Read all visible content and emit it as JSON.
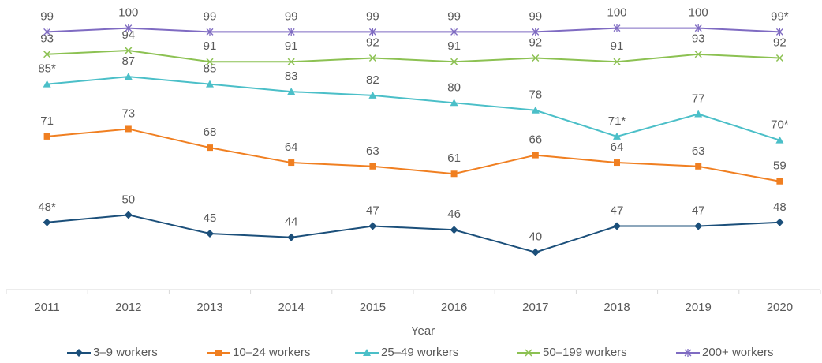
{
  "chart_data": {
    "type": "line",
    "x_label": "Year",
    "categories": [
      "2011",
      "2012",
      "2013",
      "2014",
      "2015",
      "2016",
      "2017",
      "2018",
      "2019",
      "2020"
    ],
    "ylim": [
      30,
      107
    ],
    "series": [
      {
        "name": "3–9 workers",
        "color": "#1b4f7a",
        "marker": "diamond",
        "values": [
          48,
          50,
          45,
          44,
          47,
          46,
          40,
          47,
          47,
          48
        ],
        "value_labels": [
          "48*",
          "50",
          "45",
          "44",
          "47",
          "46",
          "40",
          "47",
          "47",
          "48"
        ]
      },
      {
        "name": "10–24 workers",
        "color": "#f07f21",
        "marker": "square",
        "values": [
          71,
          73,
          68,
          64,
          63,
          61,
          66,
          64,
          63,
          59
        ],
        "value_labels": [
          "71",
          "73",
          "68",
          "64",
          "63",
          "61",
          "66",
          "64",
          "63",
          "59"
        ]
      },
      {
        "name": "25–49 workers",
        "color": "#4bbfc8",
        "marker": "triangle",
        "values": [
          85,
          87,
          85,
          83,
          82,
          80,
          78,
          71,
          77,
          70
        ],
        "value_labels": [
          "85*",
          "87",
          "85",
          "83",
          "82",
          "80",
          "78",
          "71*",
          "77",
          "70*"
        ]
      },
      {
        "name": "50–199 workers",
        "color": "#8cc152",
        "marker": "x",
        "values": [
          93,
          94,
          91,
          91,
          92,
          91,
          92,
          91,
          93,
          92
        ],
        "value_labels": [
          "93",
          "94",
          "91",
          "91",
          "92",
          "91",
          "92",
          "91",
          "93",
          "92"
        ]
      },
      {
        "name": "200+ workers",
        "color": "#7f6bc2",
        "marker": "star",
        "values": [
          99,
          100,
          99,
          99,
          99,
          99,
          99,
          100,
          100,
          99
        ],
        "value_labels": [
          "99",
          "100",
          "99",
          "99",
          "99",
          "99",
          "99",
          "100",
          "100",
          "99*"
        ]
      }
    ]
  }
}
